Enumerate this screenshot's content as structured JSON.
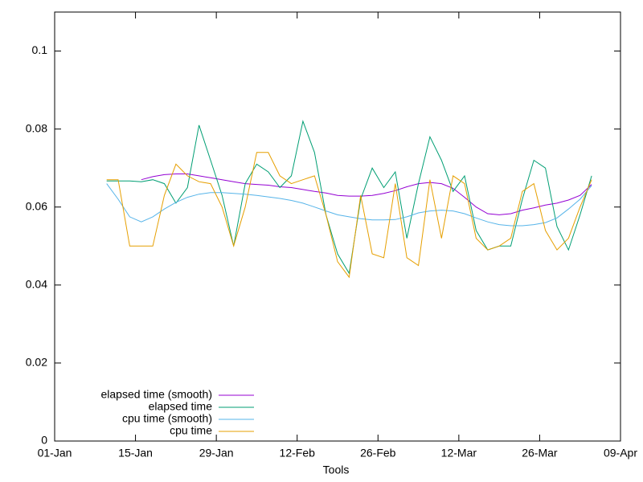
{
  "chart_data": {
    "type": "line",
    "xlabel": "Tools",
    "x": [
      "10-Jan",
      "12-Jan",
      "14-Jan",
      "16-Jan",
      "18-Jan",
      "20-Jan",
      "22-Jan",
      "24-Jan",
      "26-Jan",
      "28-Jan",
      "30-Jan",
      "01-Feb",
      "03-Feb",
      "05-Feb",
      "07-Feb",
      "09-Feb",
      "11-Feb",
      "13-Feb",
      "15-Feb",
      "17-Feb",
      "19-Feb",
      "21-Feb",
      "23-Feb",
      "25-Feb",
      "27-Feb",
      "01-Mar",
      "03-Mar",
      "05-Mar",
      "07-Mar",
      "09-Mar",
      "11-Mar",
      "13-Mar",
      "15-Mar",
      "17-Mar",
      "19-Mar",
      "21-Mar",
      "23-Mar",
      "25-Mar",
      "27-Mar",
      "29-Mar",
      "31-Mar",
      "02-Apr",
      "04-Apr"
    ],
    "series": [
      {
        "name": "elapsed time (smooth)",
        "color": "#9400d3",
        "values": [
          null,
          null,
          null,
          0.067,
          0.0678,
          0.0683,
          0.0685,
          0.0685,
          0.068,
          0.0675,
          0.067,
          0.0665,
          0.066,
          0.0658,
          0.0656,
          0.0652,
          0.065,
          0.0645,
          0.064,
          0.0636,
          0.063,
          0.0628,
          0.0628,
          0.063,
          0.0635,
          0.0642,
          0.0652,
          0.066,
          0.0663,
          0.066,
          0.0648,
          0.0625,
          0.06,
          0.0583,
          0.058,
          0.0583,
          0.0592,
          0.0598,
          0.0605,
          0.061,
          0.0618,
          0.063,
          0.0658
        ]
      },
      {
        "name": "elapsed time",
        "color": "#009e73",
        "values": [
          0.0667,
          0.0667,
          0.0667,
          0.0665,
          0.067,
          0.066,
          0.061,
          0.065,
          0.081,
          0.072,
          0.063,
          0.05,
          0.066,
          0.071,
          0.069,
          0.065,
          0.068,
          0.082,
          0.074,
          0.058,
          0.048,
          0.043,
          0.062,
          0.07,
          0.065,
          0.069,
          0.052,
          0.066,
          0.078,
          0.072,
          0.064,
          0.068,
          0.054,
          0.049,
          0.05,
          0.05,
          0.062,
          0.072,
          0.07,
          0.055,
          0.049,
          0.058,
          0.068
        ]
      },
      {
        "name": "cpu time (smooth)",
        "color": "#56b4e9",
        "values": [
          0.066,
          0.062,
          0.0575,
          0.0562,
          0.0575,
          0.0595,
          0.0612,
          0.0625,
          0.0633,
          0.0637,
          0.0637,
          0.0635,
          0.0633,
          0.063,
          0.0626,
          0.0622,
          0.0617,
          0.061,
          0.06,
          0.059,
          0.058,
          0.0575,
          0.057,
          0.0567,
          0.0567,
          0.0568,
          0.0575,
          0.0585,
          0.059,
          0.0592,
          0.059,
          0.0583,
          0.0572,
          0.0562,
          0.0555,
          0.0552,
          0.0552,
          0.0555,
          0.056,
          0.0572,
          0.0595,
          0.062,
          0.0655
        ]
      },
      {
        "name": "cpu time",
        "color": "#e69f00",
        "values": [
          0.067,
          0.067,
          0.05,
          0.05,
          0.05,
          0.063,
          0.071,
          0.068,
          0.0665,
          0.066,
          0.06,
          0.05,
          0.06,
          0.074,
          0.074,
          0.068,
          0.066,
          0.067,
          0.068,
          0.058,
          0.046,
          0.042,
          0.063,
          0.048,
          0.047,
          0.066,
          0.047,
          0.045,
          0.067,
          0.052,
          0.068,
          0.066,
          0.052,
          0.049,
          0.05,
          0.052,
          0.064,
          0.066,
          0.054,
          0.049,
          0.052,
          0.06,
          0.067
        ]
      }
    ],
    "xlim": [
      "01-Jan",
      "09-Apr"
    ],
    "xticks": [
      "01-Jan",
      "15-Jan",
      "29-Jan",
      "12-Feb",
      "26-Feb",
      "12-Mar",
      "26-Mar",
      "09-Apr"
    ],
    "ylim": [
      0,
      0.11
    ],
    "yticks": [
      0,
      0.02,
      0.04,
      0.06,
      0.08,
      0.1
    ],
    "legend": "bottom-left"
  }
}
